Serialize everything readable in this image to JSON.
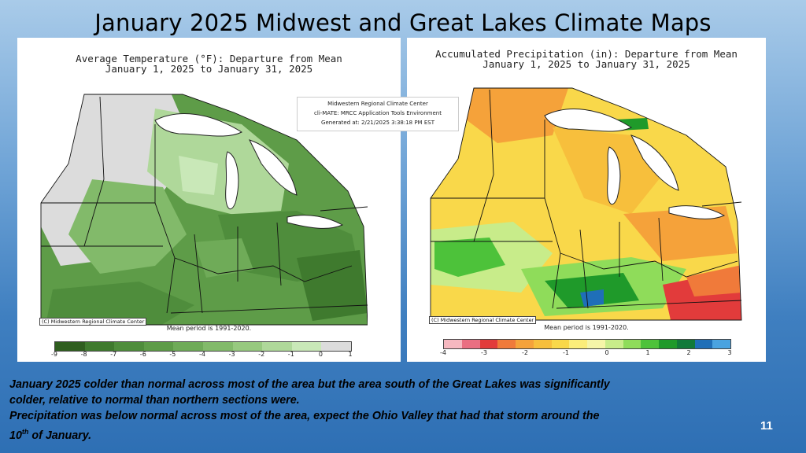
{
  "slide": {
    "title": "January 2025 Midwest and Great Lakes Climate Maps",
    "page_number": "11"
  },
  "temperature_map": {
    "title_line1": "Average Temperature (°F): Departure from Mean",
    "title_line2": "January 1, 2025 to January 31, 2025",
    "credit": "(C) Midwestern Regional Climate Center",
    "mean_period": "Mean period is 1991-2020.",
    "colorbar_ticks": [
      "-9",
      "-8",
      "-7",
      "-6",
      "-5",
      "-4",
      "-3",
      "-2",
      "-1",
      "0",
      "1"
    ],
    "colorbar_colors": [
      "#2f5e1f",
      "#3f7a2e",
      "#4f8d3c",
      "#5e9c48",
      "#6fab58",
      "#82ba6a",
      "#97c97f",
      "#afd89a",
      "#c9e8b8",
      "#dcdcdc"
    ]
  },
  "precipitation_map": {
    "title_line1": "Accumulated Precipitation (in): Departure from Mean",
    "title_line2": "January 1, 2025 to January 31, 2025",
    "credit": "(C) Midwestern Regional Climate Center",
    "mean_period": "Mean period is 1991-2020.",
    "colorbar_ticks": [
      "-4",
      "-3",
      "-2",
      "-1",
      "0",
      "1",
      "2",
      "3"
    ],
    "colorbar_colors": [
      "#f6b8c0",
      "#ea6f82",
      "#e23b3b",
      "#f07a3a",
      "#f5a23a",
      "#f7bf3c",
      "#f9d84a",
      "#fbed7a",
      "#f5f5a8",
      "#c8ec8a",
      "#8fdc5a",
      "#4dc23a",
      "#1f9a2a",
      "#117a3a",
      "#1f6fb8",
      "#4aa3e0"
    ]
  },
  "info_box": {
    "line1": "Midwestern Regional Climate Center",
    "line2": "cli-MATE: MRCC Application Tools Environment",
    "line3": "Generated at: 2/21/2025 3:38:18 PM EST"
  },
  "caption": {
    "line1": "January 2025 colder than normal across most of the area but the area south of the Great Lakes was significantly",
    "line2": "colder, relative to normal than  northern sections were.",
    "line3": "Precipitation was below normal across most of the area, expect the Ohio Valley that had that storm around the",
    "line4_base": "10",
    "line4_sup": "th",
    "line4_rest": " of January."
  }
}
